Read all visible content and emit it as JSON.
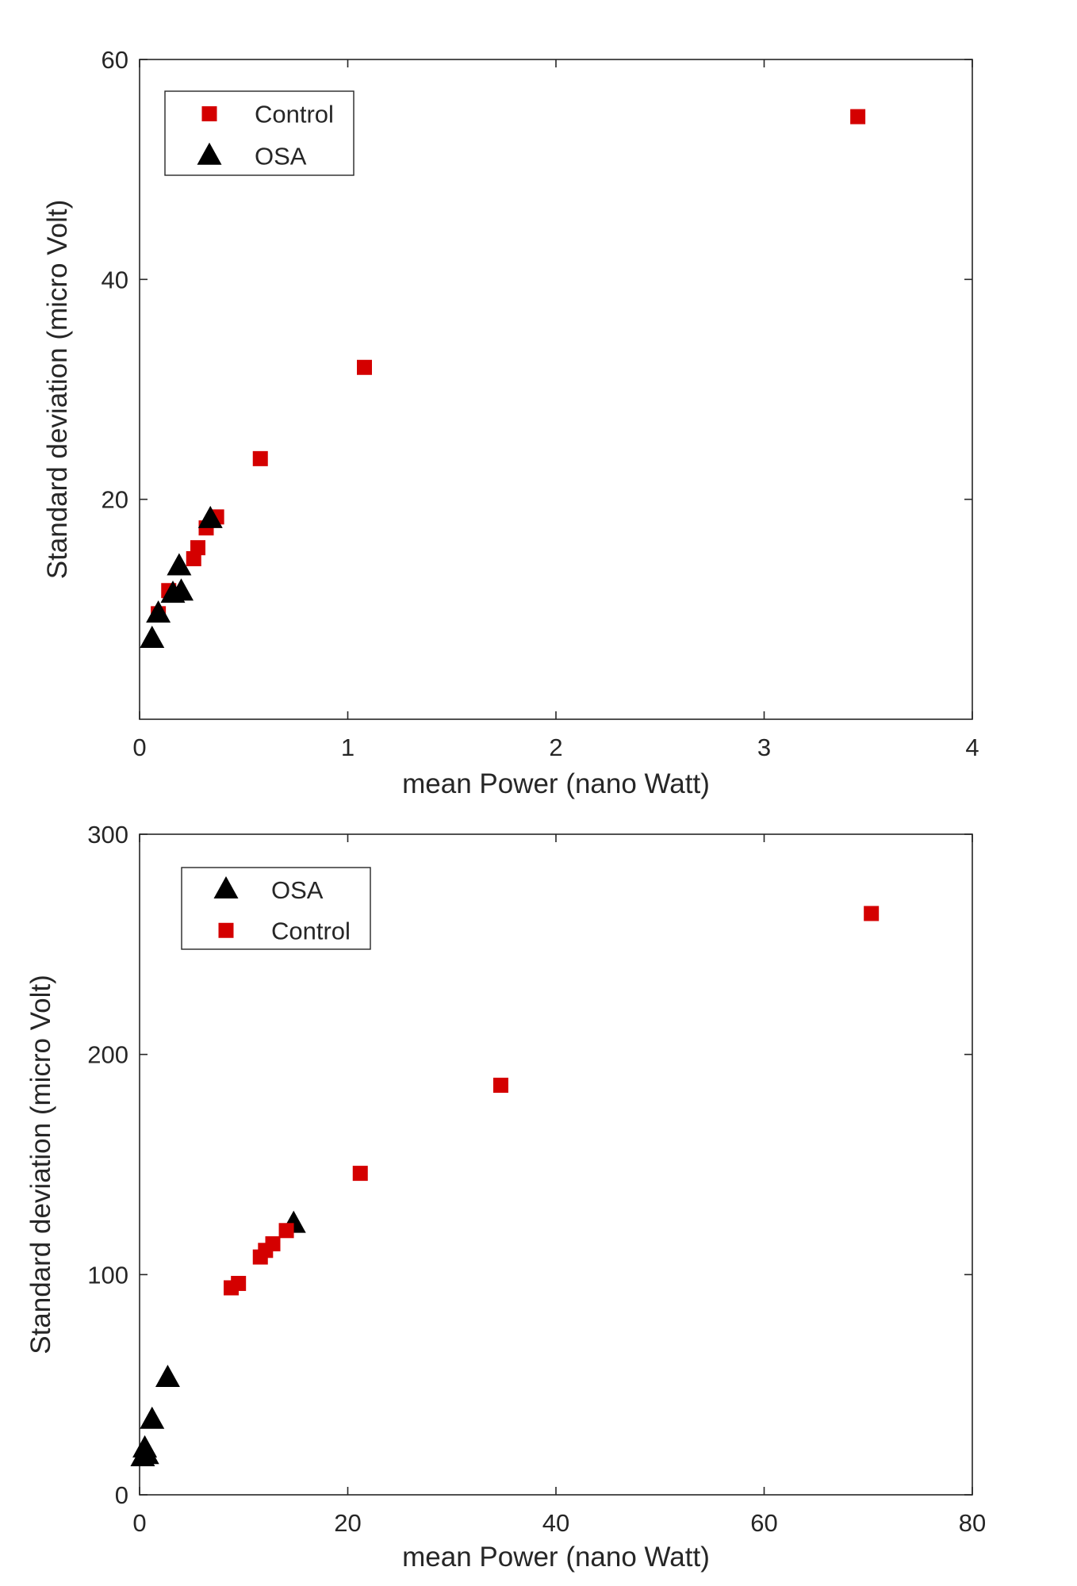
{
  "chart_data": [
    {
      "type": "scatter",
      "title": "",
      "xlabel": "mean Power (nano Watt)",
      "ylabel": "Standard deviation (micro Volt)",
      "xlim": [
        0,
        4
      ],
      "ylim": [
        0,
        60
      ],
      "xticks": [
        0,
        1,
        2,
        3,
        4
      ],
      "yticks": [
        20,
        40,
        60
      ],
      "grid": false,
      "legend_position": "top-left",
      "legend_order": [
        "Control",
        "OSA"
      ],
      "series": [
        {
          "name": "Control",
          "marker": "square",
          "color": "#d40000",
          "points": [
            [
              0.09,
              9.6
            ],
            [
              0.14,
              11.7
            ],
            [
              0.26,
              14.6
            ],
            [
              0.28,
              15.6
            ],
            [
              0.32,
              17.4
            ],
            [
              0.37,
              18.4
            ],
            [
              0.58,
              23.7
            ],
            [
              1.08,
              32.0
            ],
            [
              3.45,
              54.8
            ]
          ]
        },
        {
          "name": "OSA",
          "marker": "triangle",
          "color": "#000000",
          "points": [
            [
              0.06,
              7.3
            ],
            [
              0.09,
              9.6
            ],
            [
              0.16,
              11.4
            ],
            [
              0.2,
              11.6
            ],
            [
              0.19,
              13.9
            ],
            [
              0.34,
              18.2
            ]
          ]
        }
      ]
    },
    {
      "type": "scatter",
      "title": "",
      "xlabel": "mean Power (nano Watt)",
      "ylabel": "Standard deviation (micro Volt)",
      "xlim": [
        0,
        80
      ],
      "ylim": [
        0,
        300
      ],
      "xticks": [
        0,
        20,
        40,
        60,
        80
      ],
      "yticks": [
        0,
        100,
        200,
        300
      ],
      "grid": false,
      "legend_position": "top-left",
      "legend_order": [
        "OSA",
        "Control"
      ],
      "series": [
        {
          "name": "OSA",
          "marker": "triangle",
          "color": "#000000",
          "points": [
            [
              0.3,
              17
            ],
            [
              0.5,
              21
            ],
            [
              0.7,
              18
            ],
            [
              1.2,
              34
            ],
            [
              2.7,
              53
            ],
            [
              14.8,
              123
            ]
          ]
        },
        {
          "name": "Control",
          "marker": "square",
          "color": "#d40000",
          "points": [
            [
              8.8,
              94
            ],
            [
              9.5,
              96
            ],
            [
              11.6,
              108
            ],
            [
              12.1,
              111
            ],
            [
              12.8,
              114
            ],
            [
              14.1,
              120
            ],
            [
              21.2,
              146
            ],
            [
              34.7,
              186
            ],
            [
              70.3,
              264
            ]
          ]
        }
      ]
    }
  ]
}
